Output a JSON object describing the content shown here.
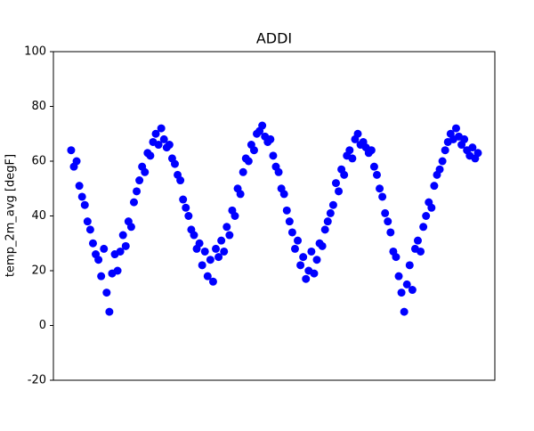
{
  "chart_data": {
    "type": "scatter",
    "title": "ADDI",
    "y_label": "temp_2m_avg [degF]",
    "color": "#0000ff",
    "xlim": [
      -65,
      1552
    ],
    "ylim": [
      -20,
      100
    ],
    "yticks": [
      -20,
      0,
      20,
      40,
      60,
      80,
      100
    ],
    "x": [
      0,
      10,
      20,
      30,
      40,
      50,
      60,
      70,
      80,
      90,
      100,
      110,
      120,
      130,
      140,
      150,
      160,
      170,
      180,
      190,
      200,
      210,
      220,
      230,
      240,
      250,
      260,
      270,
      280,
      290,
      300,
      310,
      320,
      330,
      340,
      350,
      360,
      370,
      380,
      390,
      400,
      410,
      420,
      430,
      440,
      450,
      460,
      470,
      480,
      490,
      500,
      510,
      520,
      530,
      540,
      550,
      560,
      570,
      580,
      590,
      600,
      610,
      620,
      630,
      640,
      650,
      660,
      670,
      680,
      690,
      700,
      710,
      720,
      730,
      740,
      750,
      760,
      770,
      780,
      790,
      800,
      810,
      820,
      830,
      840,
      850,
      860,
      870,
      880,
      890,
      900,
      910,
      920,
      930,
      940,
      950,
      960,
      970,
      980,
      990,
      1000,
      1010,
      1020,
      1030,
      1040,
      1050,
      1060,
      1070,
      1080,
      1090,
      1100,
      1110,
      1120,
      1130,
      1140,
      1150,
      1160,
      1170,
      1180,
      1190,
      1200,
      1210,
      1220,
      1230,
      1240,
      1250,
      1260,
      1270,
      1280,
      1290,
      1300,
      1310,
      1320,
      1330,
      1340,
      1350,
      1360,
      1370,
      1380,
      1390,
      1400,
      1410,
      1420,
      1430,
      1440,
      1450,
      1460,
      1470,
      1480,
      1490
    ],
    "values": [
      64,
      58,
      60,
      51,
      47,
      44,
      38,
      35,
      30,
      26,
      24,
      18,
      28,
      12,
      5,
      19,
      26,
      20,
      27,
      33,
      29,
      38,
      36,
      45,
      49,
      53,
      58,
      56,
      63,
      62,
      67,
      70,
      66,
      72,
      68,
      65,
      66,
      61,
      59,
      55,
      53,
      46,
      43,
      40,
      35,
      33,
      28,
      30,
      22,
      27,
      18,
      24,
      16,
      28,
      25,
      31,
      27,
      36,
      33,
      42,
      40,
      50,
      48,
      56,
      61,
      60,
      66,
      64,
      70,
      71,
      73,
      69,
      67,
      68,
      62,
      58,
      56,
      50,
      48,
      42,
      38,
      34,
      28,
      31,
      22,
      25,
      17,
      20,
      27,
      19,
      24,
      30,
      29,
      35,
      38,
      41,
      44,
      52,
      49,
      57,
      55,
      62,
      64,
      61,
      68,
      70,
      66,
      67,
      65,
      63,
      64,
      58,
      55,
      50,
      47,
      41,
      38,
      34,
      27,
      25,
      18,
      12,
      5,
      15,
      22,
      13,
      28,
      31,
      27,
      36,
      40,
      45,
      43,
      51,
      55,
      57,
      60,
      64,
      67,
      70,
      68,
      72,
      69,
      66,
      68,
      64,
      62,
      65,
      61,
      63
    ]
  }
}
